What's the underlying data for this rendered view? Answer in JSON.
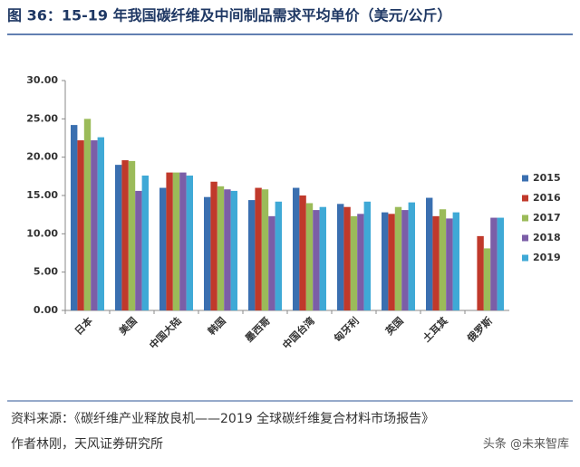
{
  "chart_data": {
    "type": "bar",
    "title": "图 36：15-19 年我国碳纤维及中间制品需求平均单价（美元/公斤）",
    "categories": [
      "日本",
      "美国",
      "中国大陆",
      "韩国",
      "墨西哥",
      "中国台湾",
      "匈牙利",
      "英国",
      "土耳其",
      "俄罗斯"
    ],
    "series": [
      {
        "name": "2015",
        "color": "#3a6fb0",
        "values": [
          24.2,
          19.0,
          16.0,
          14.8,
          14.4,
          16.0,
          13.9,
          12.8,
          14.7,
          null
        ]
      },
      {
        "name": "2016",
        "color": "#c0392b",
        "values": [
          22.2,
          19.6,
          18.0,
          16.8,
          16.0,
          15.0,
          13.5,
          12.6,
          12.3,
          9.7
        ]
      },
      {
        "name": "2017",
        "color": "#9bbb59",
        "values": [
          25.0,
          19.5,
          18.0,
          16.2,
          15.8,
          14.0,
          12.3,
          13.5,
          13.2,
          8.1
        ]
      },
      {
        "name": "2018",
        "color": "#7b5ea7",
        "values": [
          22.2,
          15.6,
          18.0,
          15.8,
          12.3,
          13.1,
          12.6,
          13.1,
          12.0,
          12.1
        ]
      },
      {
        "name": "2019",
        "color": "#3fa9d6",
        "values": [
          22.6,
          17.6,
          17.6,
          15.6,
          14.2,
          13.5,
          14.2,
          14.1,
          12.8,
          12.1
        ]
      }
    ],
    "ylim": [
      0,
      30
    ],
    "yticks": [
      {
        "value": 0,
        "label": "0.00"
      },
      {
        "value": 5,
        "label": "5.00"
      },
      {
        "value": 10,
        "label": "10.00"
      },
      {
        "value": 15,
        "label": "15.00"
      },
      {
        "value": 20,
        "label": "20.00"
      },
      {
        "value": 25,
        "label": "25.00"
      },
      {
        "value": 30,
        "label": "30.00"
      }
    ],
    "grid": false,
    "legend": "right",
    "notes": [
      "资料来源：《碳纤维产业释放良机——2019 全球碳纤维复合材料市场报告》",
      "作者林刚，天风证券研究所"
    ],
    "watermark": "头条 @未来智库"
  }
}
